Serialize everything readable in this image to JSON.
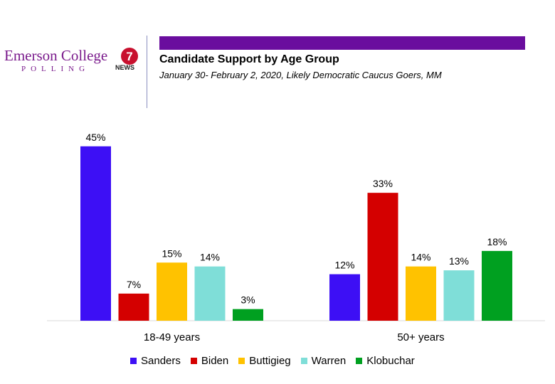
{
  "branding": {
    "org_name": "Emerson College",
    "org_sub": "POLLING",
    "partner_name": "NEWS",
    "partner_mark": "7",
    "accent_color": "#6a0d9e"
  },
  "chart_data": {
    "type": "bar",
    "title": "Candidate Support by Age Group",
    "subtitle": "January 30- February 2, 2020, Likely Democratic Caucus Goers, MM",
    "categories": [
      "18-49 years",
      "50+ years"
    ],
    "series": [
      {
        "name": "Sanders",
        "color": "#3d0ff5",
        "values": [
          45,
          12
        ],
        "labels": [
          "45%",
          "12%"
        ]
      },
      {
        "name": "Biden",
        "color": "#d40000",
        "values": [
          7,
          33
        ],
        "labels": [
          "7%",
          "33%"
        ]
      },
      {
        "name": "Buttigieg",
        "color": "#ffc200",
        "values": [
          15,
          14
        ],
        "labels": [
          "15%",
          "14%"
        ]
      },
      {
        "name": "Warren",
        "color": "#7fded8",
        "values": [
          14,
          13
        ],
        "labels": [
          "14%",
          "13%"
        ]
      },
      {
        "name": "Klobuchar",
        "color": "#00a020",
        "values": [
          3,
          18
        ],
        "labels": [
          "3%",
          "18%"
        ]
      }
    ],
    "xlabel": "",
    "ylabel": "",
    "ylim": [
      0,
      50
    ],
    "grid": false,
    "legend_position": "bottom"
  }
}
